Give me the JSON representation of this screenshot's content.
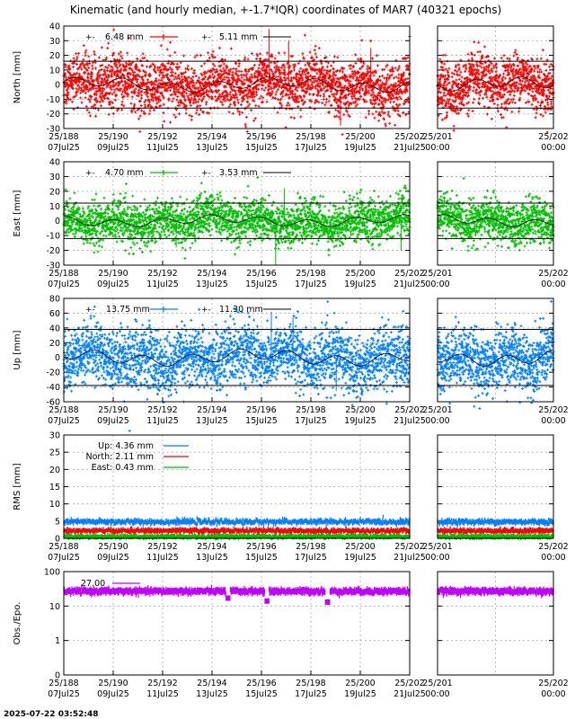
{
  "title": "Kinematic (and hourly median, +-1.7*IQR) coordinates of MAR7 (40321 epochs)",
  "footer_timestamp": "2025-07-22 03:52:48",
  "x_ticks_main": [
    {
      "day": "25/188",
      "date": "07Jul25"
    },
    {
      "day": "25/190",
      "date": "09Jul25"
    },
    {
      "day": "25/192",
      "date": "11Jul25"
    },
    {
      "day": "25/194",
      "date": "13Jul25"
    },
    {
      "day": "25/196",
      "date": "15Jul25"
    },
    {
      "day": "25/198",
      "date": "17Jul25"
    },
    {
      "day": "25/200",
      "date": "19Jul25"
    },
    {
      "day": "25/202",
      "date": "21Jul25"
    }
  ],
  "x_ticks_zoom": [
    {
      "day": "25/201",
      "date": "00:00"
    },
    {
      "day": "25/202",
      "date": "00:00"
    }
  ],
  "chart_data": [
    {
      "id": "north",
      "type": "scatter",
      "ylabel": "North [mm]",
      "ylim": [
        -30,
        40
      ],
      "yticks": [
        -30,
        -20,
        -10,
        0,
        10,
        20,
        30,
        40
      ],
      "scale": "linear",
      "color": "#ff0000",
      "iqr_bound": 16,
      "legend": [
        {
          "label": "6.48 mm",
          "color": "#ff0000",
          "style": "points"
        },
        {
          "label": "5.11 mm",
          "color": "#000000",
          "style": "median"
        }
      ],
      "spread": 9,
      "spikes": [
        [
          4.75,
          38
        ],
        [
          6.4,
          -28
        ],
        [
          5.2,
          30
        ],
        [
          7.1,
          25
        ]
      ]
    },
    {
      "id": "east",
      "type": "scatter",
      "ylabel": "East [mm]",
      "ylim": [
        -30,
        40
      ],
      "yticks": [
        -30,
        -20,
        -10,
        0,
        10,
        20,
        30,
        40
      ],
      "scale": "linear",
      "color": "#00c000",
      "iqr_bound": 12,
      "legend": [
        {
          "label": "4.70 mm",
          "color": "#00c000",
          "style": "points"
        },
        {
          "label": "3.53 mm",
          "color": "#000000",
          "style": "median"
        }
      ],
      "spread": 7,
      "spikes": [
        [
          4.9,
          -30
        ],
        [
          5.1,
          22
        ],
        [
          7.8,
          -20
        ],
        [
          2.6,
          -18
        ]
      ]
    },
    {
      "id": "up",
      "type": "scatter",
      "ylabel": "Up [mm]",
      "ylim": [
        -60,
        80
      ],
      "yticks": [
        -60,
        -40,
        -20,
        0,
        20,
        40,
        60,
        80
      ],
      "scale": "linear",
      "color": "#0080ff",
      "iqr_bound": 38,
      "legend": [
        {
          "label": "13.75 mm",
          "color": "#0080ff",
          "style": "points"
        },
        {
          "label": "11.30 mm",
          "color": "#000000",
          "style": "median"
        }
      ],
      "spread": 20,
      "spikes": [
        [
          4.8,
          62
        ],
        [
          5.3,
          55
        ],
        [
          6.3,
          -45
        ]
      ]
    },
    {
      "id": "rms",
      "type": "scatter",
      "ylabel": "RMS [mm]",
      "ylim": [
        0,
        30
      ],
      "yticks": [
        0,
        5,
        10,
        15,
        20,
        25,
        30
      ],
      "scale": "linear",
      "legend": [
        {
          "label": "Up:   4.36 mm",
          "color": "#0080ff",
          "style": "line"
        },
        {
          "label": "North:   2.11 mm",
          "color": "#ff0000",
          "style": "line"
        },
        {
          "label": "East:   0.43 mm",
          "color": "#00c000",
          "style": "line"
        }
      ],
      "series": [
        {
          "name": "Up",
          "color": "#0080ff",
          "level": 4.8,
          "jitter": 0.6
        },
        {
          "name": "North",
          "color": "#ff0000",
          "level": 2.2,
          "jitter": 0.5
        },
        {
          "name": "East",
          "color": "#00c000",
          "level": 0.5,
          "jitter": 0.4
        }
      ]
    },
    {
      "id": "obs",
      "type": "scatter",
      "ylabel": "Obs./Epo.",
      "ylim": [
        0,
        100
      ],
      "ytick_labels": [
        "0",
        "1",
        "10",
        "100"
      ],
      "scale": "log",
      "color": "#c000ff",
      "legend": [
        {
          "label": "27.00",
          "color": "#c000ff",
          "style": "line"
        }
      ],
      "level": 27,
      "dips": [
        [
          4.7,
          14
        ],
        [
          6.1,
          13
        ],
        [
          3.8,
          17
        ]
      ]
    }
  ]
}
